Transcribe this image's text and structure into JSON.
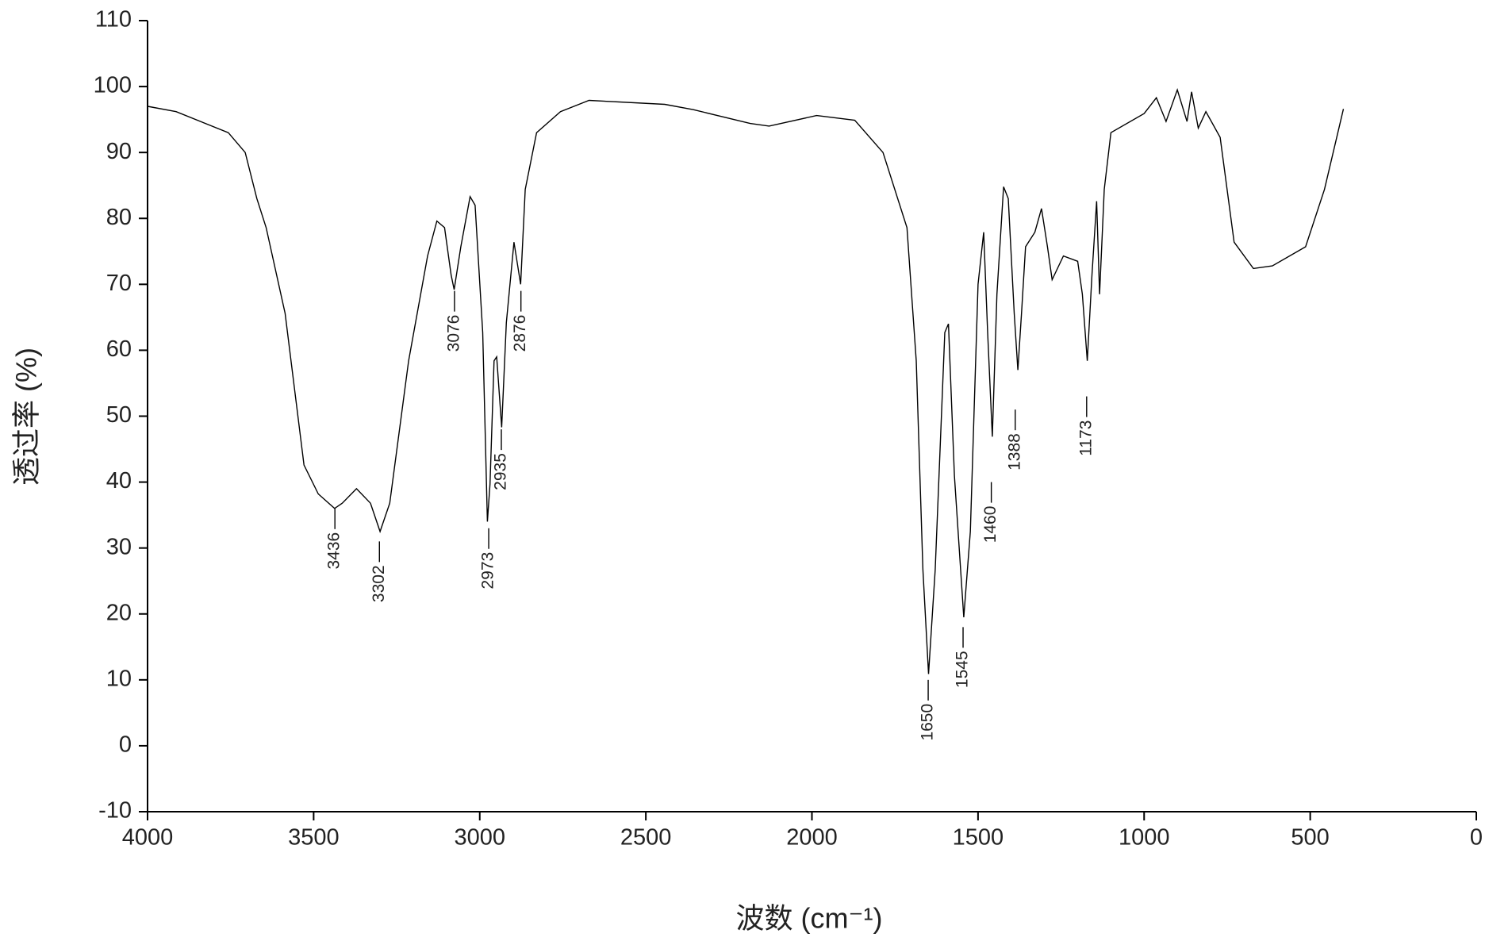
{
  "chart_data": {
    "type": "line",
    "xlabel": "波数 (cm⁻¹)",
    "ylabel": "透过率 (%)",
    "xlim": [
      4000,
      0
    ],
    "ylim": [
      -10,
      110
    ],
    "xticks": [
      4000,
      3500,
      3000,
      2500,
      2000,
      1500,
      1000,
      500,
      0
    ],
    "yticks": [
      -10,
      0,
      10,
      20,
      30,
      40,
      50,
      60,
      70,
      80,
      90,
      100,
      110
    ],
    "series": [
      {
        "color": "#000000",
        "x": [
          4000,
          3914,
          3757,
          3706,
          3671,
          3643,
          3586,
          3529,
          3486,
          3437,
          3414,
          3371,
          3329,
          3300,
          3271,
          3214,
          3157,
          3129,
          3106,
          3086,
          3077,
          3057,
          3029,
          3014,
          2991,
          2977,
          2969,
          2957,
          2949,
          2934,
          2920,
          2897,
          2877,
          2863,
          2829,
          2757,
          2671,
          2443,
          2357,
          2186,
          2129,
          1986,
          1871,
          1786,
          1714,
          1686,
          1666,
          1649,
          1629,
          1600,
          1589,
          1571,
          1543,
          1523,
          1500,
          1483,
          1471,
          1457,
          1443,
          1423,
          1409,
          1391,
          1380,
          1369,
          1357,
          1329,
          1309,
          1291,
          1277,
          1243,
          1200,
          1186,
          1171,
          1157,
          1143,
          1134,
          1120,
          1100,
          1000,
          963,
          934,
          900,
          871,
          857,
          837,
          814,
          771,
          729,
          671,
          614,
          514,
          457,
          400
        ],
        "values": [
          97,
          96.2,
          93,
          90,
          83,
          78.6,
          65.6,
          42.6,
          38.2,
          36,
          36.8,
          39,
          36.8,
          32.5,
          36.8,
          58.4,
          74.3,
          79.6,
          78.6,
          71.4,
          69.2,
          75.7,
          83.3,
          82,
          62.7,
          34,
          39.7,
          58.4,
          59,
          48.3,
          64.2,
          76.4,
          70,
          84.4,
          93,
          96.2,
          97.9,
          97.3,
          96.5,
          94.4,
          94,
          95.6,
          94.9,
          90,
          78.6,
          58.4,
          26.7,
          10.9,
          26.7,
          62.7,
          64,
          41,
          19.5,
          32.5,
          70,
          77.9,
          62.7,
          46.9,
          68.5,
          84.8,
          83,
          65.6,
          57,
          65.6,
          75.7,
          77.9,
          81.5,
          75.7,
          70.7,
          74.3,
          73.5,
          68.5,
          58.4,
          71.4,
          82.6,
          68.5,
          84.4,
          93,
          95.9,
          98.3,
          94.7,
          99.5,
          94.7,
          99.2,
          93.7,
          96.2,
          92.3,
          76.4,
          72.4,
          72.8,
          75.7,
          84.4,
          96.6
        ]
      }
    ],
    "peaks": {
      "x": [
        3436,
        3302,
        3076,
        2973,
        2935,
        2876,
        1650,
        1545,
        1460,
        1388,
        1173
      ],
      "y": [
        36,
        31,
        69,
        33,
        48,
        69,
        10,
        18,
        40,
        51,
        53
      ]
    }
  }
}
